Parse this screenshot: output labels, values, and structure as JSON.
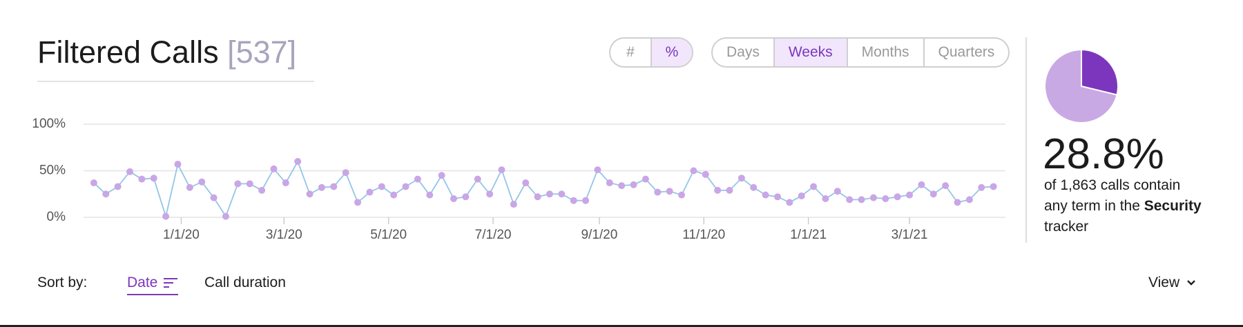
{
  "header": {
    "title": "Filtered Calls",
    "count": "[537]"
  },
  "mode_toggle": {
    "options": [
      "#",
      "%"
    ],
    "active": 1
  },
  "period_toggle": {
    "options": [
      "Days",
      "Weeks",
      "Months",
      "Quarters"
    ],
    "active": 1
  },
  "chart_data": [
    {
      "type": "line",
      "x": [
        "11/11/19",
        "11/18/19",
        "11/25/19",
        "12/2/19",
        "12/9/19",
        "12/16/19",
        "12/23/19",
        "12/30/19",
        "1/6/20",
        "1/13/20",
        "1/20/20",
        "1/27/20",
        "2/3/20",
        "2/10/20",
        "2/17/20",
        "2/24/20",
        "3/2/20",
        "3/9/20",
        "3/16/20",
        "3/23/20",
        "3/30/20",
        "4/6/20",
        "4/13/20",
        "4/20/20",
        "4/27/20",
        "5/4/20",
        "5/11/20",
        "5/18/20",
        "5/25/20",
        "6/1/20",
        "6/8/20",
        "6/15/20",
        "6/22/20",
        "6/29/20",
        "7/6/20",
        "7/13/20",
        "7/20/20",
        "7/27/20",
        "8/3/20",
        "8/10/20",
        "8/17/20",
        "8/24/20",
        "8/31/20",
        "9/7/20",
        "9/14/20",
        "9/21/20",
        "9/28/20",
        "10/5/20",
        "10/12/20",
        "10/19/20",
        "10/26/20",
        "11/2/20",
        "11/9/20",
        "11/16/20",
        "11/23/20",
        "11/30/20",
        "12/7/20",
        "12/14/20",
        "12/21/20",
        "12/28/20",
        "1/4/21",
        "1/11/21",
        "1/18/21",
        "1/25/21",
        "2/1/21",
        "2/8/21",
        "2/15/21",
        "2/22/21",
        "3/1/21",
        "3/8/21",
        "3/15/21",
        "3/22/21",
        "3/29/21",
        "4/5/21",
        "4/12/21",
        "4/19/21"
      ],
      "values": [
        37,
        25,
        33,
        49,
        41,
        42,
        1,
        57,
        32,
        38,
        21,
        1,
        36,
        36,
        29,
        52,
        37,
        60,
        25,
        32,
        33,
        48,
        16,
        27,
        33,
        24,
        33,
        41,
        24,
        45,
        20,
        22,
        41,
        25,
        51,
        14,
        37,
        22,
        25,
        25,
        18,
        18,
        51,
        37,
        34,
        35,
        41,
        27,
        28,
        24,
        50,
        46,
        29,
        29,
        42,
        32,
        24,
        22,
        16,
        23,
        33,
        20,
        28,
        19,
        19,
        21,
        20,
        22,
        24,
        35,
        25,
        34,
        16,
        19,
        32,
        33
      ],
      "line_color": "#93c5e8",
      "marker_color": "#c9a6e6",
      "xlim": [
        "11/5/19",
        "4/26/21"
      ],
      "xticks": [
        "1/1/20",
        "3/1/20",
        "5/1/20",
        "7/1/20",
        "9/1/20",
        "11/1/20",
        "1/1/21",
        "3/1/21"
      ],
      "ylim": [
        0,
        100
      ],
      "yticks": [
        {
          "value": 0,
          "label": "0%"
        },
        {
          "value": 50,
          "label": "50%"
        },
        {
          "value": 100,
          "label": "100%"
        }
      ],
      "grid": true
    },
    {
      "type": "pie",
      "values": [
        28.8,
        71.2
      ],
      "colors": [
        "#7b36bd",
        "#c9a9e3"
      ]
    }
  ],
  "summary": {
    "percent": "28.8%",
    "line1": "of 1,863 calls contain",
    "line2": "any term in the",
    "keyword": "Security",
    "line3": "tracker"
  },
  "sort": {
    "label": "Sort by:",
    "options": [
      "Date",
      "Call duration"
    ],
    "view": "View"
  }
}
